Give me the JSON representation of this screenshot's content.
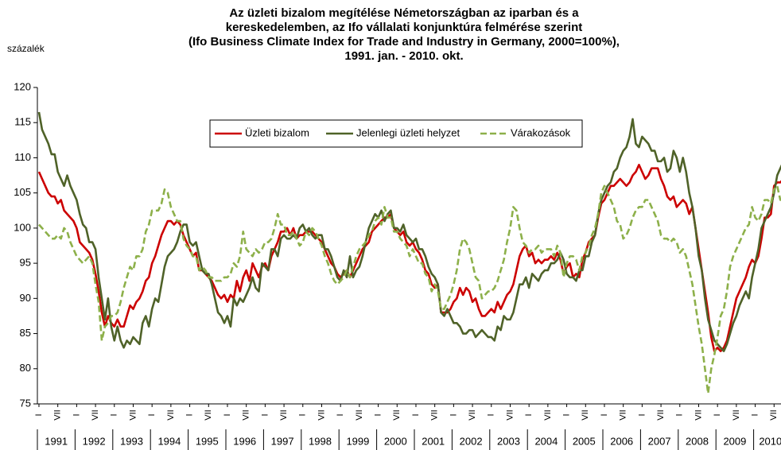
{
  "chart_data": {
    "type": "line",
    "title": [
      "Az üzleti bizalom megítélése Németországban az iparban és a",
      "kereskedelemben, az Ifo vállalati konjunktúra felmérése szerint",
      "(Ifo Business Climate Index for Trade and Industry in Germany, 2000=100%),",
      "1991. jan. - 2010. okt."
    ],
    "ylabel": "százalék",
    "ylim": [
      75,
      120
    ],
    "yticks": [
      75,
      80,
      85,
      90,
      95,
      100,
      105,
      110,
      115,
      120
    ],
    "grid": false,
    "legend": "top-center",
    "year_labels": [
      "1991",
      "1992",
      "1993",
      "1994",
      "1995",
      "1996",
      "1997",
      "1998",
      "1999",
      "2000",
      "2001",
      "2002",
      "2003",
      "2004",
      "2005",
      "2006",
      "2007",
      "2008",
      "2009",
      "2010"
    ],
    "categories": [
      "I",
      null,
      null,
      null,
      null,
      null,
      "VII",
      null,
      null,
      null,
      null,
      null,
      "I",
      null,
      null,
      null,
      null,
      null,
      "VII",
      null,
      null,
      null,
      null,
      null,
      "I",
      null,
      null,
      null,
      null,
      null,
      "VII",
      null,
      null,
      null,
      null,
      null,
      "I",
      null,
      null,
      null,
      null,
      null,
      "VII",
      null,
      null,
      null,
      null,
      null,
      "I",
      null,
      null,
      null,
      null,
      null,
      "VII",
      null,
      null,
      null,
      null,
      null,
      "I",
      null,
      null,
      null,
      null,
      null,
      "VII",
      null,
      null,
      null,
      null,
      null,
      "I",
      null,
      null,
      null,
      null,
      null,
      "VII",
      null,
      null,
      null,
      null,
      null,
      "I",
      null,
      null,
      null,
      null,
      null,
      "VII",
      null,
      null,
      null,
      null,
      null,
      "I",
      null,
      null,
      null,
      null,
      null,
      "VII",
      null,
      null,
      null,
      null,
      null,
      "I",
      null,
      null,
      null,
      null,
      null,
      "VII",
      null,
      null,
      null,
      null,
      null,
      "I",
      null,
      null,
      null,
      null,
      null,
      "VII",
      null,
      null,
      null,
      null,
      null,
      "I",
      null,
      null,
      null,
      null,
      null,
      "VII",
      null,
      null,
      null,
      null,
      null,
      "I",
      null,
      null,
      null,
      null,
      null,
      "VII",
      null,
      null,
      null,
      null,
      null,
      "I",
      null,
      null,
      null,
      null,
      null,
      "VII",
      null,
      null,
      null,
      null,
      null,
      "I",
      null,
      null,
      null,
      null,
      null,
      "VII",
      null,
      null,
      null,
      null,
      null,
      "I",
      null,
      null,
      null,
      null,
      null,
      "VII",
      null,
      null,
      null,
      null,
      null,
      "I",
      null,
      null,
      null,
      null,
      null,
      "VII",
      null,
      null,
      null,
      null,
      null,
      "I",
      null,
      null,
      null,
      null,
      null,
      "VII",
      null,
      null,
      null,
      null,
      null,
      "I",
      null,
      null,
      null,
      null,
      null,
      "VII",
      null,
      null,
      null,
      null,
      null,
      "I",
      null,
      null,
      null,
      null,
      null,
      "VII",
      null,
      null,
      null
    ],
    "series": [
      {
        "name": "Üzleti bizalom",
        "color": "#cc0000",
        "dash": false,
        "values": [
          108,
          107,
          106,
          105,
          104.5,
          104.5,
          103.5,
          104,
          102.5,
          102,
          101.5,
          101,
          100,
          98,
          97.5,
          97,
          96.5,
          95.5,
          93.5,
          91,
          88,
          86,
          87.5,
          86.5,
          86,
          87,
          86,
          86,
          87.5,
          89,
          88.5,
          89.5,
          90,
          91,
          92.5,
          93,
          95,
          96,
          97.5,
          99,
          100,
          101,
          101,
          100.5,
          101,
          100.5,
          99,
          98,
          97,
          96,
          96.5,
          94,
          94,
          93.5,
          93,
          92.5,
          91.5,
          90.5,
          90,
          90.5,
          89.5,
          90.5,
          90,
          92.5,
          91,
          93,
          94,
          92.5,
          95,
          94,
          93,
          94.5,
          95,
          94,
          96,
          97,
          98,
          99.5,
          99.5,
          100,
          99,
          100,
          98.5,
          99,
          99,
          99.5,
          99.5,
          99.5,
          99,
          98.5,
          98,
          97,
          96,
          95,
          94.5,
          93.5,
          93,
          93.5,
          94,
          93,
          94,
          95,
          96,
          97,
          97.5,
          98,
          99.5,
          100,
          100.5,
          101,
          101.5,
          101.5,
          102,
          100,
          99.5,
          99,
          99.5,
          98,
          97.5,
          98,
          97,
          96.5,
          95.5,
          94,
          93.5,
          92,
          91.5,
          92,
          88,
          88,
          88,
          88.5,
          89.5,
          90,
          91.5,
          90.5,
          91.5,
          91,
          89.5,
          90,
          88.5,
          87.5,
          87.5,
          88,
          88.5,
          88,
          89.5,
          88.5,
          89.5,
          90.5,
          91,
          92,
          94,
          96,
          97,
          97.5,
          96,
          96.5,
          95,
          95.5,
          95,
          95.5,
          95.5,
          96,
          95.5,
          96.5,
          95.5,
          93.5,
          94.5,
          95,
          93,
          93.5,
          93,
          95.5,
          96.5,
          98,
          98.5,
          99,
          101.5,
          103.5,
          104,
          105,
          106,
          106,
          106.5,
          107,
          106.5,
          106,
          106.5,
          107.5,
          108,
          109,
          108,
          107,
          107.5,
          108.5,
          108.5,
          108.5,
          107,
          106,
          104.5,
          104,
          104.5,
          103,
          103.5,
          104,
          103.5,
          102,
          103,
          100,
          97,
          94,
          91,
          88,
          84.5,
          82.5,
          83,
          82.5,
          83,
          84,
          86,
          88,
          90,
          91,
          92,
          93,
          94.5,
          95.5,
          95,
          96,
          98.5,
          101.5,
          101.5,
          102,
          106,
          106.5,
          106.5,
          107
        ]
      },
      {
        "name": "Jelenlegi üzleti helyzet",
        "color": "#4f6228",
        "dash": false,
        "values": [
          116.5,
          114,
          113,
          112,
          110.5,
          110.5,
          108,
          107,
          106,
          107.5,
          106,
          105,
          104,
          102,
          100.5,
          100,
          98,
          98,
          97,
          93,
          90,
          87,
          90,
          86,
          84,
          86,
          84,
          83,
          84,
          83.5,
          84.5,
          84,
          83.5,
          86.5,
          87.5,
          86,
          88.5,
          90,
          89.5,
          92,
          94.5,
          96,
          96.5,
          97,
          98,
          99.5,
          100.5,
          100.5,
          98,
          97.5,
          98,
          96,
          94,
          93.5,
          93.5,
          92,
          90,
          88,
          87.5,
          86.5,
          87.5,
          86,
          90,
          89,
          90,
          89.5,
          90.5,
          91.5,
          93,
          91.5,
          91,
          95,
          94.5,
          94,
          97,
          97,
          96,
          98.5,
          99,
          98.5,
          98.5,
          99,
          98.5,
          100,
          100.5,
          99.5,
          100,
          99,
          98.5,
          99,
          99,
          97,
          97,
          96,
          94.5,
          93,
          92.5,
          94,
          93,
          96,
          93,
          94,
          94.5,
          96,
          98,
          100,
          101,
          102,
          101.5,
          102.5,
          101,
          102,
          102.5,
          100,
          100,
          99.5,
          100.5,
          99,
          98.5,
          98,
          98.5,
          97,
          97,
          96,
          94.5,
          93.5,
          93,
          92,
          88,
          87.5,
          88.5,
          87.5,
          86.5,
          86.5,
          86,
          85,
          85,
          85.5,
          85.5,
          84.5,
          85,
          85.5,
          85,
          84.5,
          84.5,
          84,
          86,
          85.5,
          87.5,
          87,
          87,
          88,
          90,
          92,
          92,
          93,
          91.5,
          93.5,
          93,
          92.5,
          93.5,
          94,
          94,
          95,
          95,
          95.5,
          96.5,
          95.5,
          93.5,
          93,
          93,
          92.5,
          94,
          94,
          96,
          96,
          98,
          99,
          102,
          104,
          105,
          106,
          106.5,
          108,
          108.5,
          110,
          111,
          111.5,
          113,
          115.5,
          112,
          111.5,
          113,
          112.5,
          112,
          111,
          111,
          109.5,
          109.5,
          110,
          108,
          108.5,
          111,
          110,
          108,
          110,
          108,
          105,
          103,
          100,
          96,
          94,
          90,
          87,
          85.5,
          84,
          83.5,
          83,
          82.5,
          83.5,
          85,
          86.5,
          87.5,
          89,
          90,
          91,
          90,
          93,
          95,
          97,
          100,
          101,
          102,
          103,
          105,
          107.5,
          108.5,
          109.5
        ]
      },
      {
        "name": "Várakozások",
        "color": "#8db04a",
        "dash": true,
        "values": [
          100.5,
          100,
          99.5,
          99,
          98.5,
          98.5,
          99,
          98.5,
          100,
          99.5,
          98,
          97,
          96,
          95.5,
          95,
          95.5,
          96,
          95,
          92,
          89.5,
          84,
          86,
          86.5,
          87.5,
          87.5,
          88,
          89.5,
          91.5,
          93,
          94.5,
          94,
          96,
          96,
          97,
          99.5,
          100.5,
          102.5,
          102.5,
          102.5,
          103.5,
          105.5,
          105,
          103,
          102,
          101,
          101,
          98.5,
          97.5,
          97,
          96,
          96,
          94,
          94.5,
          94,
          93,
          93,
          92.5,
          92.5,
          92.5,
          93,
          93,
          93.5,
          95,
          94.5,
          96,
          99.5,
          97,
          96.5,
          96,
          97,
          96.5,
          97,
          98,
          98,
          98.5,
          100,
          102,
          100.5,
          100.5,
          99,
          99,
          99.5,
          98.5,
          97.5,
          98,
          99.5,
          99,
          100,
          99.5,
          98.5,
          97.5,
          96,
          95,
          93.5,
          92.5,
          92,
          92.5,
          93,
          94,
          93,
          94.5,
          96,
          97,
          97.5,
          98,
          99,
          99.5,
          101,
          101.5,
          100.5,
          103,
          101.5,
          101.5,
          99.5,
          99.5,
          98.5,
          98,
          97.5,
          96,
          97,
          96,
          95,
          95,
          93.5,
          93,
          91,
          92,
          91,
          88.5,
          88.5,
          89.5,
          90.5,
          92,
          94,
          97,
          98.5,
          98,
          97,
          95,
          93,
          92.5,
          90,
          90.5,
          91,
          91,
          91.5,
          92.5,
          94,
          95.5,
          98,
          100,
          103,
          102.5,
          100,
          98,
          97.5,
          96.5,
          97,
          97,
          97.5,
          96.5,
          97,
          97,
          97,
          96,
          97.5,
          96.5,
          93,
          95,
          96,
          96,
          95.5,
          94,
          96,
          96.5,
          97.5,
          99,
          100,
          102,
          105,
          106,
          105,
          104,
          103,
          101,
          100.5,
          98.5,
          99,
          100,
          101.5,
          102.5,
          103,
          103,
          104,
          104,
          103,
          102,
          101,
          99,
          98.5,
          98.5,
          98,
          98.5,
          98,
          96.5,
          97,
          96,
          94,
          92,
          89,
          86,
          83.5,
          80,
          76.5,
          80,
          82,
          84.5,
          87.5,
          88.5,
          91,
          94.5,
          96,
          97,
          98,
          99,
          100,
          100.5,
          103,
          101.5,
          101,
          102,
          104,
          104,
          103.5,
          105.5,
          106,
          104,
          104
        ]
      }
    ]
  }
}
